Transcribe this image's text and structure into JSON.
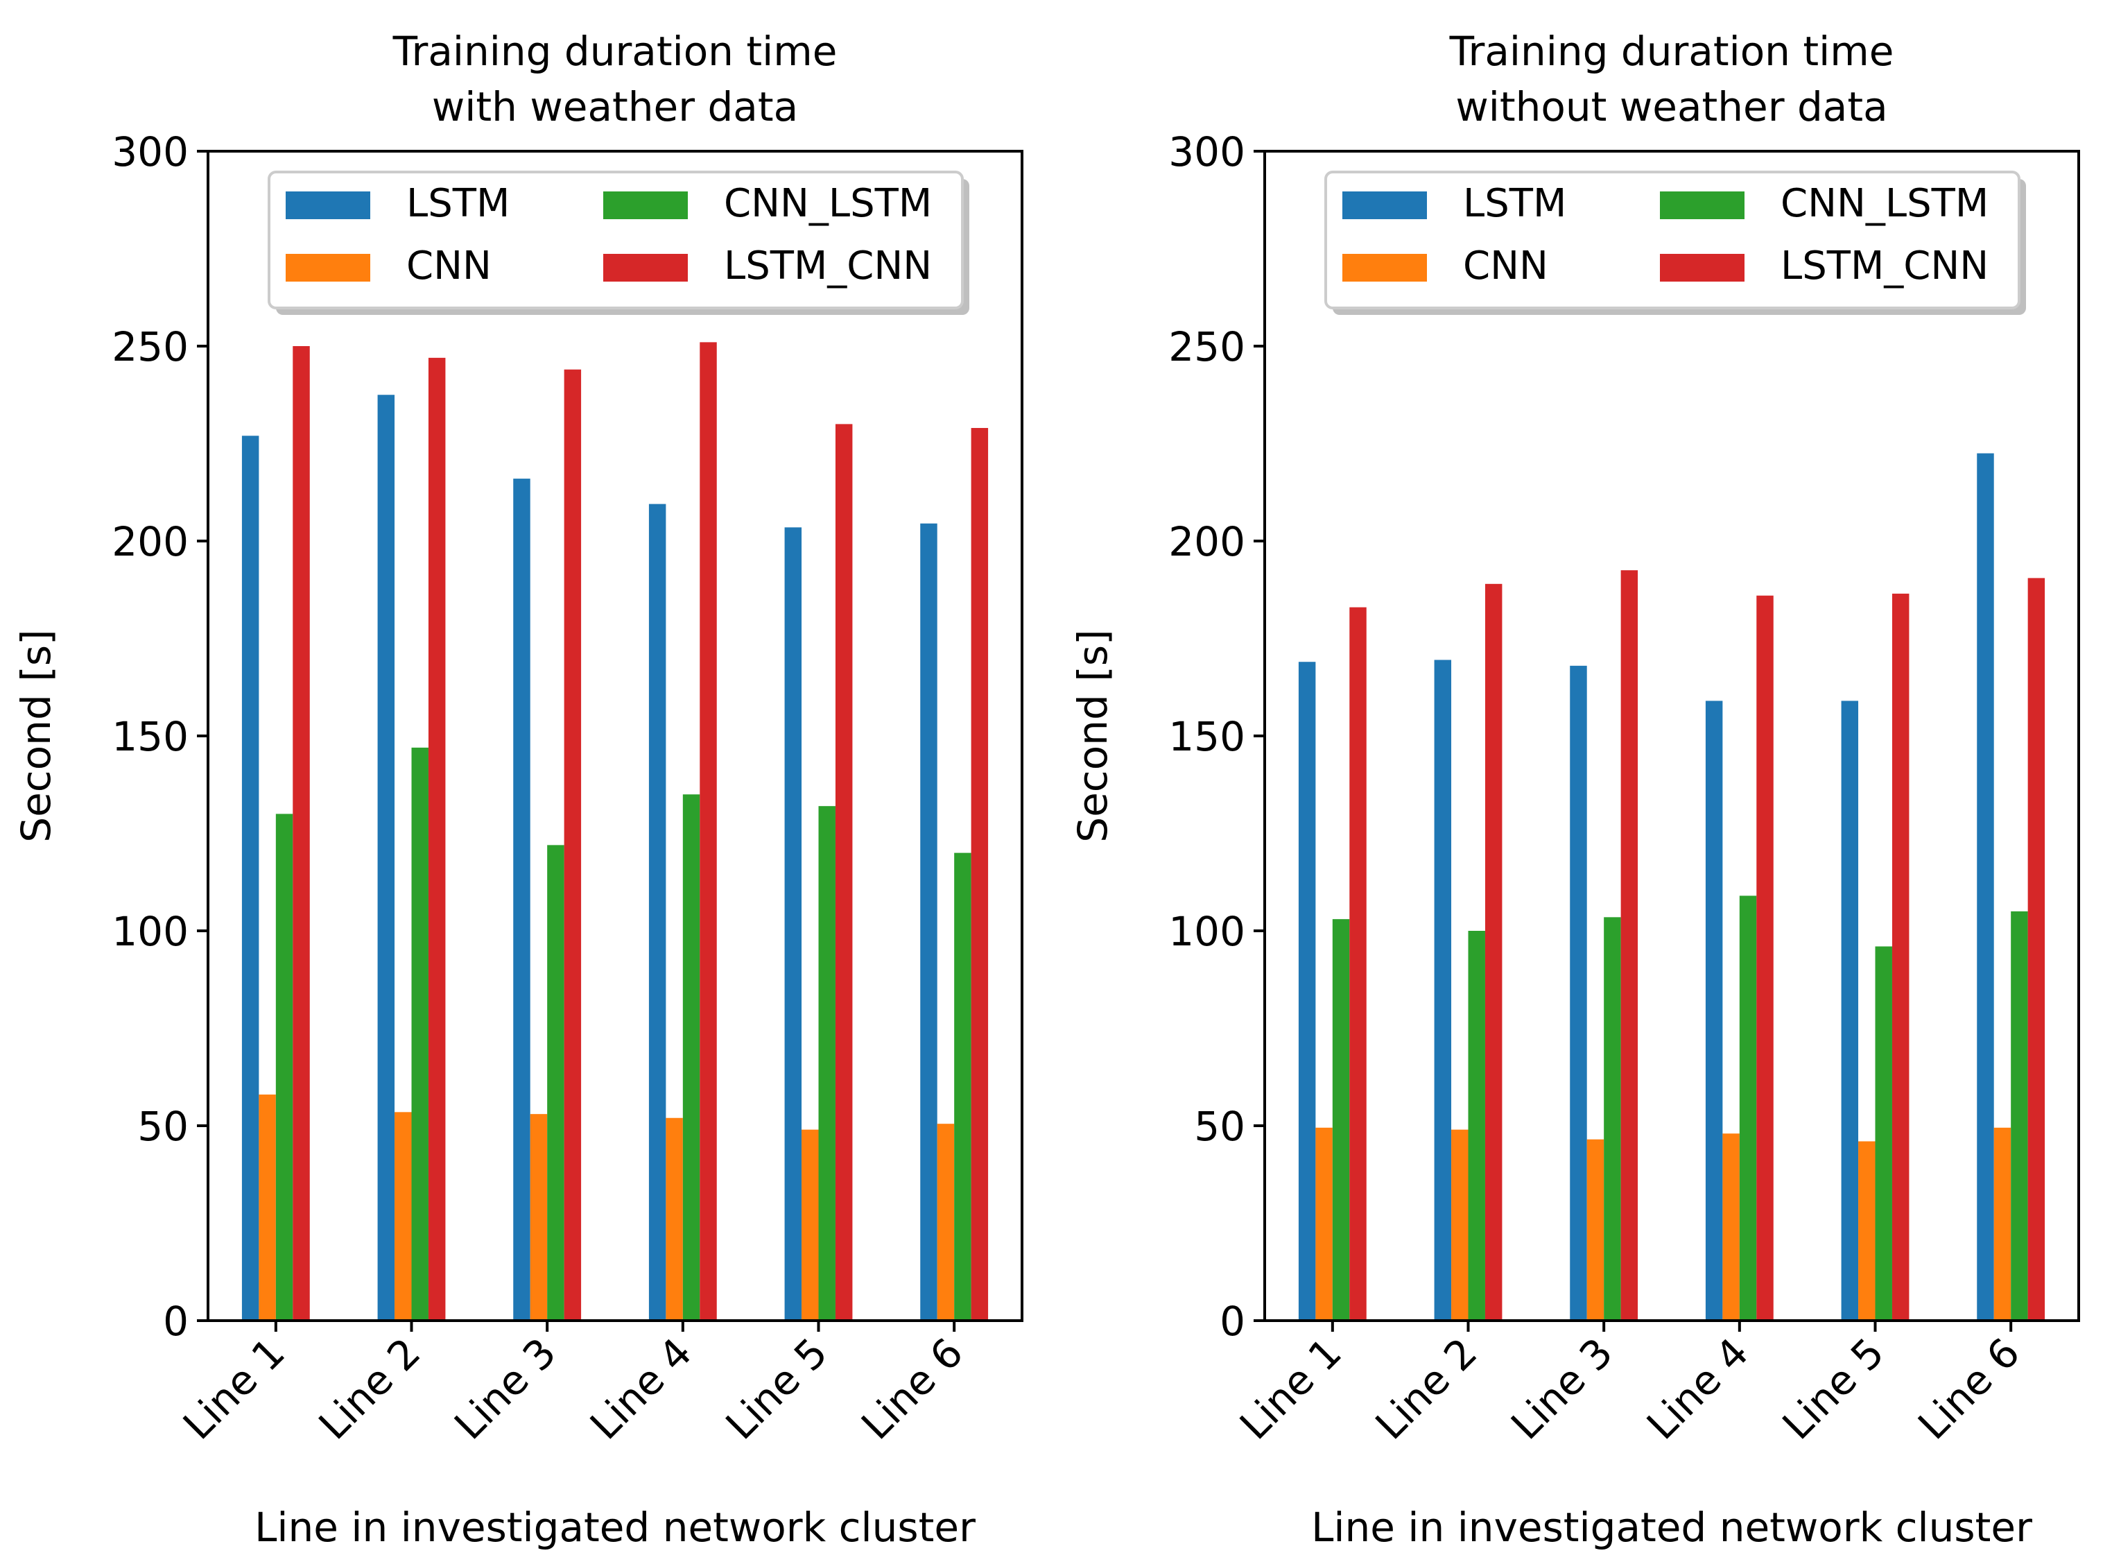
{
  "chart_data": [
    {
      "type": "bar",
      "title_lines": [
        "Training duration time",
        "with weather data"
      ],
      "xlabel": "Line in investigated network cluster",
      "ylabel": "Second [s]",
      "ylim": [
        0,
        300
      ],
      "yticks": [
        0,
        50,
        100,
        150,
        200,
        250,
        300
      ],
      "categories": [
        "Line 1",
        "Line 2",
        "Line 3",
        "Line 4",
        "Line 5",
        "Line 6"
      ],
      "legend_position": "top-center",
      "series": [
        {
          "name": "LSTM",
          "color": "#1f77b4",
          "values": [
            227,
            237.5,
            216,
            209.5,
            203.5,
            204.5
          ]
        },
        {
          "name": "CNN",
          "color": "#ff7f0e",
          "values": [
            58,
            53.5,
            53,
            52,
            49,
            50.5
          ]
        },
        {
          "name": "CNN_LSTM",
          "color": "#2ca02c",
          "values": [
            130,
            147,
            122,
            135,
            132,
            120
          ]
        },
        {
          "name": "LSTM_CNN",
          "color": "#d62728",
          "values": [
            250,
            247,
            244,
            251,
            230,
            229
          ]
        }
      ]
    },
    {
      "type": "bar",
      "title_lines": [
        "Training duration time",
        "without weather data"
      ],
      "xlabel": "Line in investigated network cluster",
      "ylabel": "Second [s]",
      "ylim": [
        0,
        300
      ],
      "yticks": [
        0,
        50,
        100,
        150,
        200,
        250,
        300
      ],
      "categories": [
        "Line 1",
        "Line 2",
        "Line 3",
        "Line 4",
        "Line 5",
        "Line 6"
      ],
      "legend_position": "top-center",
      "series": [
        {
          "name": "LSTM",
          "color": "#1f77b4",
          "values": [
            169,
            169.5,
            168,
            159,
            159,
            222.5
          ]
        },
        {
          "name": "CNN",
          "color": "#ff7f0e",
          "values": [
            49.5,
            49,
            46.5,
            48,
            46,
            49.5
          ]
        },
        {
          "name": "CNN_LSTM",
          "color": "#2ca02c",
          "values": [
            103,
            100,
            103.5,
            109,
            96,
            105
          ]
        },
        {
          "name": "LSTM_CNN",
          "color": "#d62728",
          "values": [
            183,
            189,
            192.5,
            186,
            186.5,
            190.5
          ]
        }
      ]
    }
  ]
}
